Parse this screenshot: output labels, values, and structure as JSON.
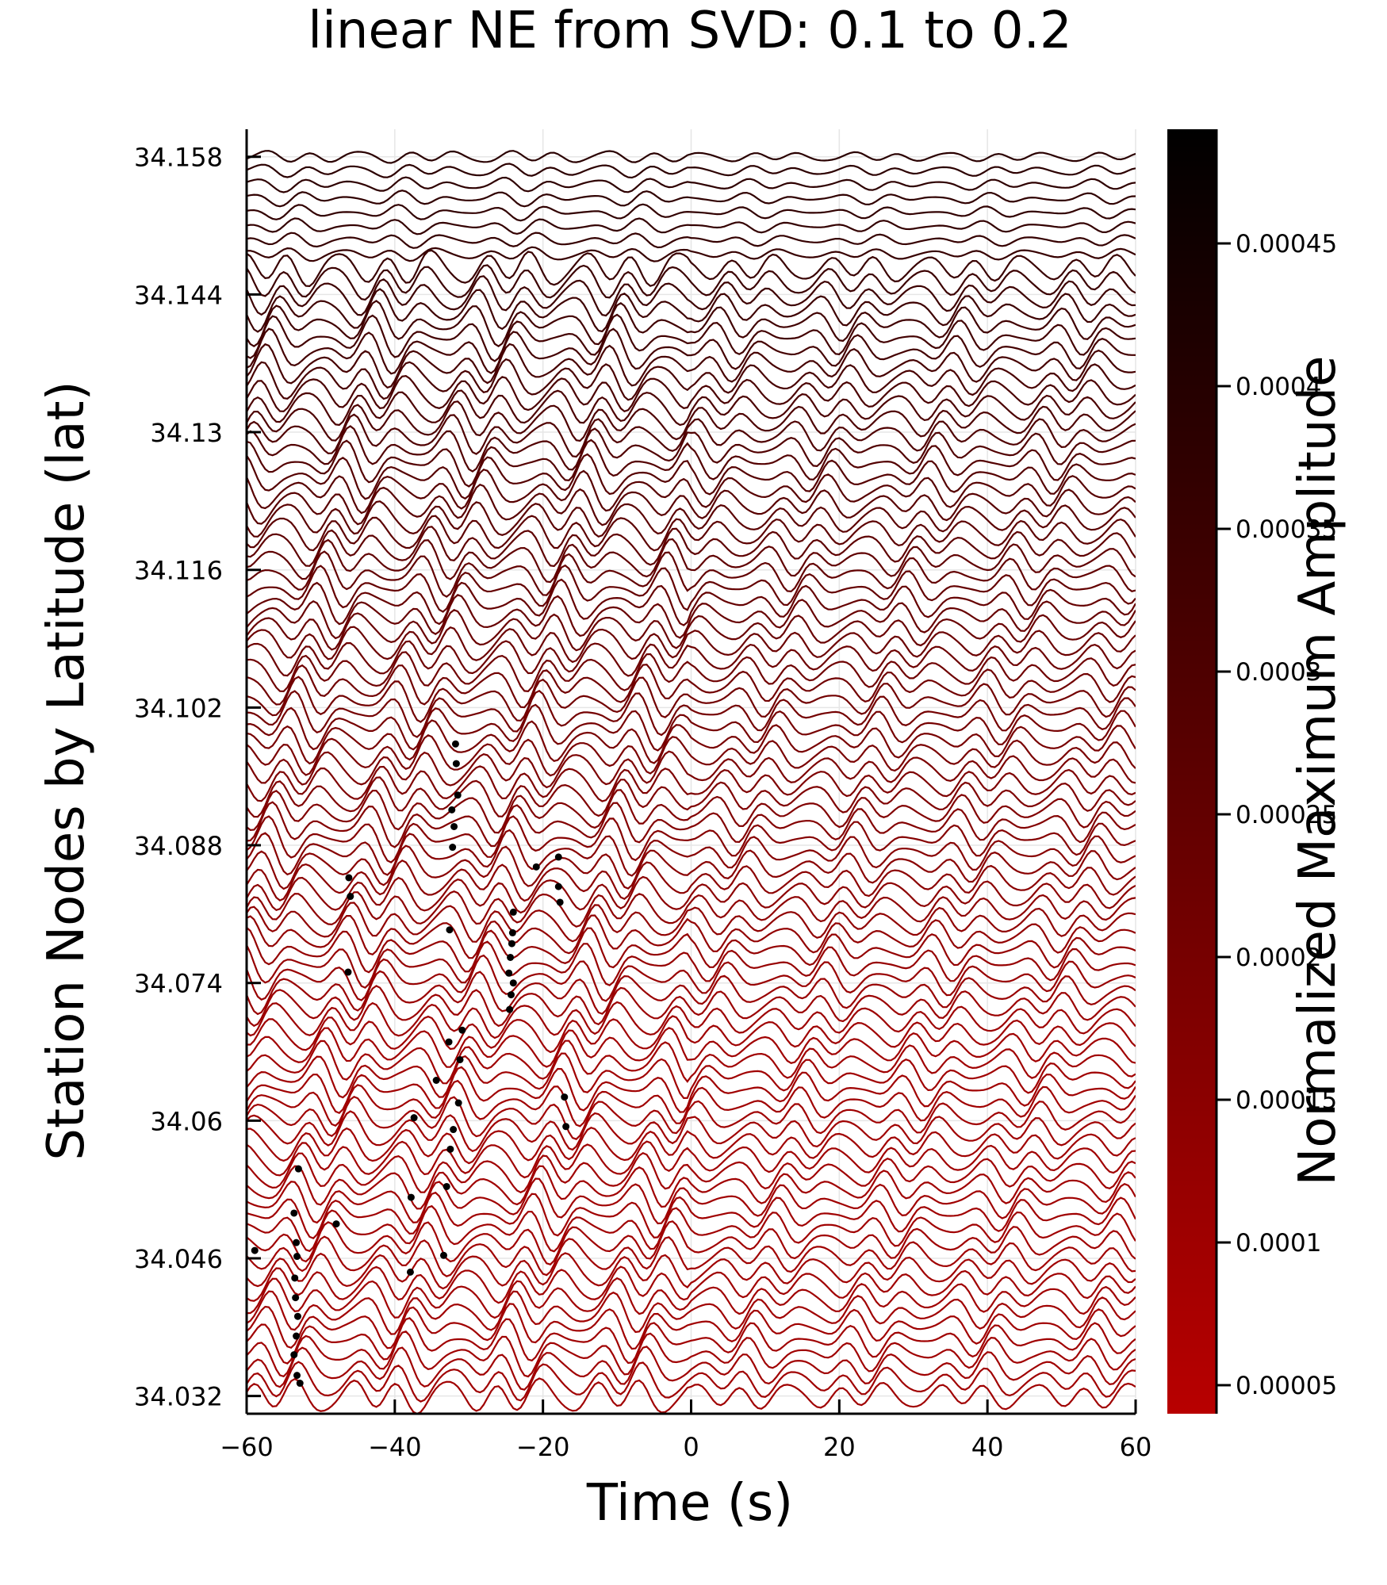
{
  "chart_data": {
    "type": "line",
    "title": "linear NE from SVD: 0.1 to 0.2",
    "xlabel": "Time (s)",
    "ylabel": "Station Nodes by Latitude (lat)",
    "xlim": [
      -60,
      60
    ],
    "ylim": [
      34.0302,
      34.1608
    ],
    "x_ticks": [
      -60,
      -40,
      -20,
      0,
      20,
      40,
      60
    ],
    "x_tick_labels": [
      "−60",
      "−40",
      "−20",
      "0",
      "20",
      "40",
      "60"
    ],
    "y_ticks": [
      34.032,
      34.046,
      34.06,
      34.074,
      34.088,
      34.102,
      34.116,
      34.13,
      34.144,
      34.158
    ],
    "y_tick_labels": [
      "34.032",
      "34.046",
      "34.06",
      "34.074",
      "34.088",
      "34.102",
      "34.116",
      "34.13",
      "34.144",
      "34.158"
    ],
    "grid": true,
    "trace_count": 90,
    "trace_lat_range": [
      34.032,
      34.158
    ],
    "trace_colors": {
      "top": "#2a0000",
      "bottom": "#a00000"
    },
    "picks": [
      {
        "t": -53.6,
        "lat": 34.0506
      },
      {
        "t": -53.3,
        "lat": 34.0476
      },
      {
        "t": -53.2,
        "lat": 34.0462
      },
      {
        "t": -53.5,
        "lat": 34.044
      },
      {
        "t": -53.4,
        "lat": 34.042
      },
      {
        "t": -53.1,
        "lat": 34.0401
      },
      {
        "t": -53.3,
        "lat": 34.0381
      },
      {
        "t": -53.6,
        "lat": 34.0362
      },
      {
        "t": -53.2,
        "lat": 34.0341
      },
      {
        "t": -52.8,
        "lat": 34.0333
      },
      {
        "t": -53.0,
        "lat": 34.0551
      },
      {
        "t": -47.9,
        "lat": 34.0495
      },
      {
        "t": -46.2,
        "lat": 34.0847
      },
      {
        "t": -46.0,
        "lat": 34.0828
      },
      {
        "t": -46.3,
        "lat": 34.0751
      },
      {
        "t": -37.8,
        "lat": 34.0522
      },
      {
        "t": -37.9,
        "lat": 34.0446
      },
      {
        "t": -37.4,
        "lat": 34.0603
      },
      {
        "t": -34.4,
        "lat": 34.0641
      },
      {
        "t": -33.4,
        "lat": 34.0463
      },
      {
        "t": -33.0,
        "lat": 34.0533
      },
      {
        "t": -32.7,
        "lat": 34.068
      },
      {
        "t": -32.6,
        "lat": 34.0794
      },
      {
        "t": -32.5,
        "lat": 34.0571
      },
      {
        "t": -32.3,
        "lat": 34.0916
      },
      {
        "t": -32.2,
        "lat": 34.0878
      },
      {
        "t": -32.1,
        "lat": 34.0591
      },
      {
        "t": -32.0,
        "lat": 34.0899
      },
      {
        "t": -31.8,
        "lat": 34.0983
      },
      {
        "t": -31.7,
        "lat": 34.0963
      },
      {
        "t": -31.5,
        "lat": 34.0931
      },
      {
        "t": -31.4,
        "lat": 34.0618
      },
      {
        "t": -31.2,
        "lat": 34.0662
      },
      {
        "t": -30.9,
        "lat": 34.0692
      },
      {
        "t": -24.5,
        "lat": 34.0713
      },
      {
        "t": -24.6,
        "lat": 34.075
      },
      {
        "t": -24.4,
        "lat": 34.0766
      },
      {
        "t": -24.2,
        "lat": 34.078
      },
      {
        "t": -24.1,
        "lat": 34.0791
      },
      {
        "t": -24.3,
        "lat": 34.0728
      },
      {
        "t": -24.0,
        "lat": 34.074
      },
      {
        "t": -24.0,
        "lat": 34.0812
      },
      {
        "t": -20.9,
        "lat": 34.0858
      },
      {
        "t": -17.9,
        "lat": 34.0868
      },
      {
        "t": -17.9,
        "lat": 34.0838
      },
      {
        "t": -17.7,
        "lat": 34.0822
      },
      {
        "t": -17.1,
        "lat": 34.0624
      },
      {
        "t": -16.9,
        "lat": 34.0594
      },
      {
        "t": -58.9,
        "lat": 34.0468
      }
    ],
    "colorbar": {
      "label": "Normalized Maximum Amplitude",
      "range": [
        4e-05,
        0.00049
      ],
      "colors": [
        "#b80000",
        "#000000"
      ],
      "ticks": [
        5e-05,
        0.0001,
        0.00015,
        0.0002,
        0.00025,
        0.0003,
        0.00035,
        0.0004,
        0.00045
      ],
      "tick_labels": [
        "0.00005",
        "0.0001",
        "0.00015",
        "0.0002",
        "0.00025",
        "0.0003",
        "0.00035",
        "0.0004",
        "0.00045"
      ]
    }
  }
}
